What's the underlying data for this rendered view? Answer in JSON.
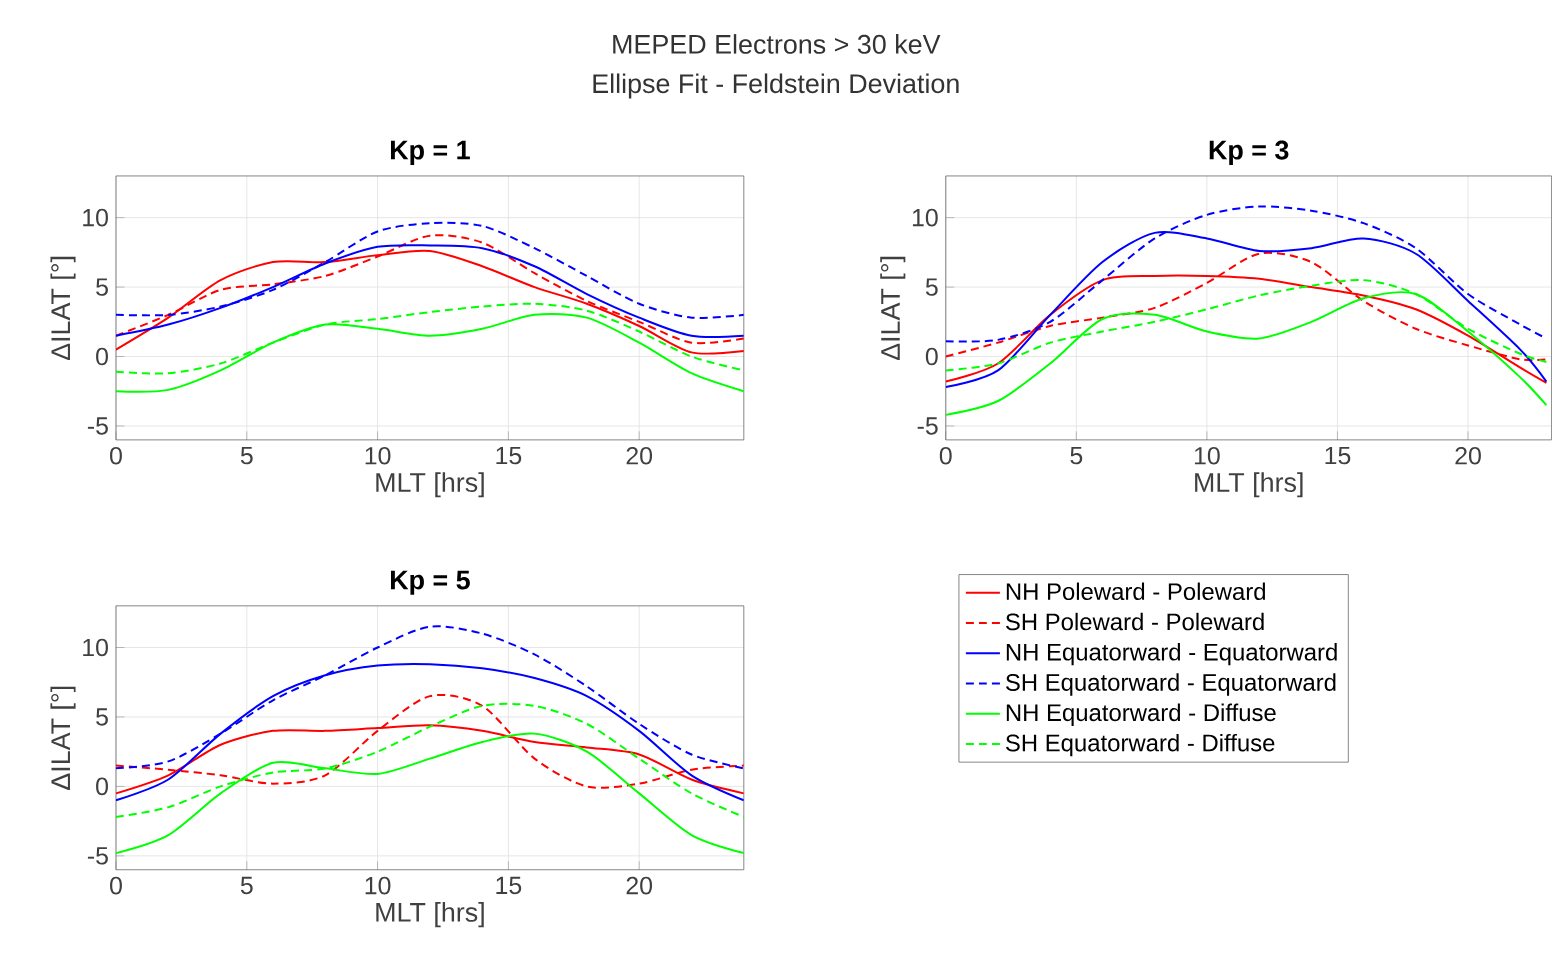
{
  "chart_data": [
    {
      "type": "line",
      "title": "Kp = 1",
      "xlabel": "MLT [hrs]",
      "ylabel": "ΔILAT [°]",
      "annotations": [
        "MEPED Electrons > 30 keV",
        "Ellipse Fit - Feldstein Deviation"
      ],
      "x": [
        0,
        2,
        4,
        6,
        8,
        10,
        12,
        14,
        16,
        18,
        20,
        22,
        24
      ],
      "xlim": [
        0,
        24
      ],
      "ylim": [
        -6,
        13
      ],
      "xticks": [
        0,
        5,
        10,
        15,
        20
      ],
      "yticks": [
        -5,
        0,
        5,
        10
      ],
      "grid": true,
      "series": [
        {
          "color": "#ff0000",
          "line_style": "solid",
          "values": [
            0.5,
            2.8,
            5.5,
            6.8,
            6.8,
            7.3,
            7.6,
            6.5,
            5.0,
            3.8,
            2.2,
            0.3,
            0.4
          ]
        },
        {
          "color": "#ff0000",
          "line_style": "dashed",
          "values": [
            1.5,
            3.0,
            4.8,
            5.2,
            5.8,
            7.2,
            8.7,
            8.2,
            6.0,
            4.0,
            2.5,
            1.0,
            1.3
          ]
        },
        {
          "color": "#0000ff",
          "line_style": "solid",
          "values": [
            1.5,
            2.3,
            3.5,
            5.0,
            6.7,
            7.9,
            8.0,
            7.8,
            6.5,
            4.5,
            2.8,
            1.5,
            1.5
          ]
        },
        {
          "color": "#0000ff",
          "line_style": "dashed",
          "values": [
            3.0,
            3.0,
            3.6,
            4.8,
            6.8,
            9.0,
            9.6,
            9.4,
            7.8,
            5.8,
            3.8,
            2.8,
            3.0
          ]
        },
        {
          "color": "#00ff00",
          "line_style": "solid",
          "values": [
            -2.5,
            -2.4,
            -1.0,
            1.0,
            2.3,
            2.0,
            1.5,
            2.0,
            3.0,
            2.8,
            1.0,
            -1.2,
            -2.5
          ]
        },
        {
          "color": "#00ff00",
          "line_style": "dashed",
          "values": [
            -1.1,
            -1.2,
            -0.5,
            1.0,
            2.3,
            2.7,
            3.2,
            3.6,
            3.8,
            3.3,
            1.8,
            0.0,
            -1.0
          ]
        }
      ]
    },
    {
      "type": "line",
      "title": "Kp = 3",
      "xlabel": "MLT [hrs]",
      "ylabel": "ΔILAT [°]",
      "x": [
        0,
        2,
        4,
        6,
        8,
        10,
        12,
        14,
        16,
        18,
        20,
        22,
        23
      ],
      "xlim": [
        0,
        23.2
      ],
      "ylim": [
        -6,
        13
      ],
      "xticks": [
        0,
        5,
        10,
        15,
        20
      ],
      "yticks": [
        -5,
        0,
        5,
        10
      ],
      "grid": true,
      "series": [
        {
          "color": "#ff0000",
          "line_style": "solid",
          "values": [
            -1.8,
            -0.5,
            3.0,
            5.5,
            5.8,
            5.8,
            5.6,
            5.0,
            4.4,
            3.4,
            1.5,
            -0.8,
            -1.9
          ]
        },
        {
          "color": "#ff0000",
          "line_style": "dashed",
          "values": [
            0.0,
            1.0,
            2.2,
            2.8,
            3.5,
            5.3,
            7.4,
            6.8,
            4.0,
            2.0,
            0.8,
            -0.2,
            -0.2
          ]
        },
        {
          "color": "#0000ff",
          "line_style": "solid",
          "values": [
            -2.2,
            -1.0,
            3.0,
            6.8,
            8.9,
            8.5,
            7.6,
            7.8,
            8.5,
            7.4,
            4.0,
            0.5,
            -1.8
          ]
        },
        {
          "color": "#0000ff",
          "line_style": "dashed",
          "values": [
            1.1,
            1.2,
            2.5,
            5.5,
            8.5,
            10.2,
            10.8,
            10.5,
            9.6,
            7.8,
            4.5,
            2.3,
            1.3
          ]
        },
        {
          "color": "#00ff00",
          "line_style": "solid",
          "values": [
            -4.2,
            -3.2,
            -0.5,
            2.7,
            3.0,
            1.8,
            1.3,
            2.5,
            4.2,
            4.5,
            1.8,
            -1.5,
            -3.5
          ]
        },
        {
          "color": "#00ff00",
          "line_style": "dashed",
          "values": [
            -1.0,
            -0.5,
            1.0,
            1.8,
            2.5,
            3.4,
            4.4,
            5.1,
            5.5,
            4.5,
            2.0,
            0.2,
            -0.4
          ]
        }
      ]
    },
    {
      "type": "line",
      "title": "Kp = 5",
      "xlabel": "MLT [hrs]",
      "ylabel": "ΔILAT [°]",
      "x": [
        0,
        2,
        4,
        6,
        8,
        10,
        12,
        14,
        16,
        18,
        20,
        22,
        24
      ],
      "xlim": [
        0,
        24
      ],
      "ylim": [
        -6,
        13
      ],
      "xticks": [
        0,
        5,
        10,
        15,
        20
      ],
      "yticks": [
        -5,
        0,
        5,
        10
      ],
      "grid": true,
      "legend": "right",
      "series": [
        {
          "name": "NH Poleward - Poleward",
          "color": "#ff0000",
          "line_style": "solid",
          "values": [
            -0.5,
            0.8,
            3.0,
            4.0,
            4.0,
            4.2,
            4.4,
            4.0,
            3.2,
            2.8,
            2.3,
            0.5,
            -0.5
          ]
        },
        {
          "name": "SH Poleward - Poleward",
          "color": "#ff0000",
          "line_style": "dashed",
          "values": [
            1.5,
            1.2,
            0.8,
            0.2,
            0.8,
            4.0,
            6.5,
            5.8,
            2.0,
            0.0,
            0.2,
            1.2,
            1.5
          ]
        },
        {
          "name": "NH Equatorward - Equatorward",
          "color": "#0000ff",
          "line_style": "solid",
          "values": [
            -1.0,
            0.5,
            3.8,
            6.5,
            8.0,
            8.7,
            8.8,
            8.5,
            7.8,
            6.5,
            4.0,
            0.8,
            -1.0
          ]
        },
        {
          "name": "SH Equatorward - Equatorward",
          "color": "#0000ff",
          "line_style": "dashed",
          "values": [
            1.3,
            1.8,
            3.8,
            6.2,
            8.0,
            10.0,
            11.5,
            11.0,
            9.5,
            7.2,
            4.5,
            2.3,
            1.3
          ]
        },
        {
          "name": "NH Equatorward - Diffuse",
          "color": "#00ff00",
          "line_style": "solid",
          "values": [
            -4.8,
            -3.5,
            -0.5,
            1.7,
            1.3,
            0.9,
            2.0,
            3.2,
            3.8,
            2.5,
            -0.5,
            -3.5,
            -4.8
          ]
        },
        {
          "name": "SH Equatorward - Diffuse",
          "color": "#00ff00",
          "line_style": "dashed",
          "values": [
            -2.2,
            -1.5,
            0.0,
            1.0,
            1.3,
            2.5,
            4.3,
            5.8,
            5.8,
            4.5,
            2.0,
            -0.5,
            -2.2
          ]
        }
      ]
    }
  ]
}
